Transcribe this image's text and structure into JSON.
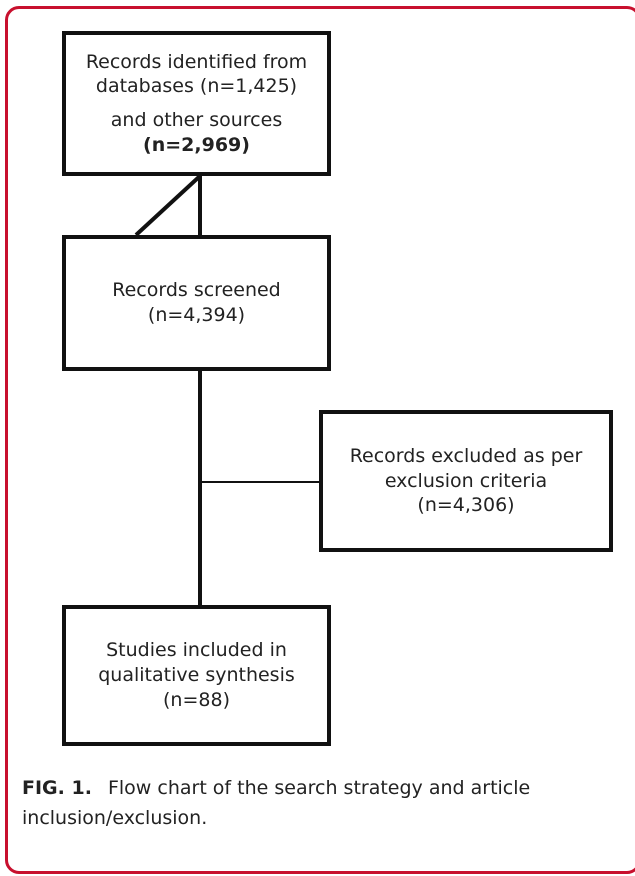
{
  "boxes": {
    "identified": {
      "line1": "Records identified from",
      "line2": "databases (n=1,425)",
      "line3": "and other sources",
      "line4": "(n=2,969)"
    },
    "screened": {
      "line1": "Records screened",
      "line2": "(n=4,394)"
    },
    "excluded": {
      "line1": "Records excluded as per",
      "line2": "exclusion criteria",
      "line3": "(n=4,306)"
    },
    "included": {
      "line1": "Studies included in",
      "line2": "qualitative synthesis",
      "line3": "(n=88)"
    }
  },
  "caption": {
    "label": "FIG. 1.",
    "text": "Flow chart of the search strategy and article inclusion/exclusion."
  },
  "colors": {
    "frame": "#c8102e",
    "lines": "#111111"
  }
}
